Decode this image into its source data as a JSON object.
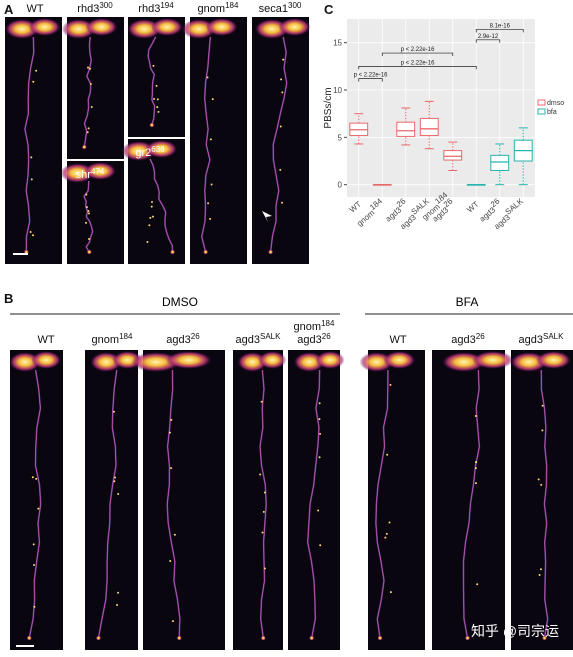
{
  "panel_a": {
    "label": "A",
    "images": [
      [
        [
          "WT"
        ]
      ],
      [
        [
          "rhd3",
          "300"
        ]
      ],
      [
        [
          "rhd3",
          "194"
        ]
      ],
      [
        [
          "gnom",
          "184"
        ]
      ],
      [
        [
          "seca1",
          "300"
        ]
      ],
      [
        [
          "shr",
          "474"
        ]
      ],
      [
        [
          "gr2",
          "633"
        ]
      ]
    ]
  },
  "panel_b": {
    "label": "B",
    "groups": [
      {
        "title": "DMSO",
        "images": [
          [
            [
              "WT"
            ]
          ],
          [
            [
              "gnom",
              "184"
            ]
          ],
          [
            [
              "agd3",
              "26"
            ]
          ],
          [
            [
              "agd3",
              "SALK"
            ]
          ],
          [
            [
              "gnom",
              "184"
            ],
            [
              "agd3",
              "26"
            ]
          ]
        ]
      },
      {
        "title": "BFA",
        "images": [
          [
            [
              "WT"
            ]
          ],
          [
            [
              "agd3",
              "26"
            ]
          ],
          [
            [
              "agd3",
              "SALK"
            ]
          ]
        ]
      }
    ]
  },
  "chart_data": {
    "type": "box",
    "title": "C",
    "y_label": "PBSs/cm",
    "categories": [
      [
        [
          "WT"
        ]
      ],
      [
        [
          "gnom",
          "184"
        ]
      ],
      [
        [
          "agd3",
          "26"
        ]
      ],
      [
        [
          "agd3",
          "SALK"
        ]
      ],
      [
        [
          "gnom",
          "184"
        ],
        [
          "agd3",
          "26"
        ]
      ],
      [
        [
          "WT"
        ]
      ],
      [
        [
          "agd3",
          "26"
        ]
      ],
      [
        [
          "agd3",
          "SALK"
        ]
      ]
    ],
    "ylim": [
      -1.3,
      17.5
    ],
    "yticks": [
      0,
      5,
      10,
      15
    ],
    "grid": true,
    "series": [
      {
        "name": "dmso",
        "color": "#e8696b",
        "values": [
          {
            "min": 4.3,
            "q1": 5.2,
            "median": 5.8,
            "q3": 6.5,
            "max": 7.5
          },
          {
            "min": 0,
            "q1": 0,
            "median": 0,
            "q3": 0,
            "max": 0
          },
          {
            "min": 4.2,
            "q1": 5.1,
            "median": 5.7,
            "q3": 6.6,
            "max": 8.1
          },
          {
            "min": 3.8,
            "q1": 5.2,
            "median": 5.9,
            "q3": 7.0,
            "max": 8.8
          },
          {
            "min": 1.5,
            "q1": 2.6,
            "median": 3.0,
            "q3": 3.6,
            "max": 4.5
          },
          null,
          null,
          null
        ]
      },
      {
        "name": "bfa",
        "color": "#2ab3b0",
        "values": [
          null,
          null,
          null,
          null,
          null,
          {
            "min": 0,
            "q1": 0,
            "median": 0,
            "q3": 0,
            "max": 0
          },
          {
            "min": 0,
            "q1": 1.5,
            "median": 2.4,
            "q3": 3.1,
            "max": 4.3
          },
          {
            "min": 0,
            "q1": 2.5,
            "median": 3.6,
            "q3": 4.7,
            "max": 6.0
          }
        ]
      }
    ],
    "annotations": [
      {
        "text": "p < 2.22e-16",
        "from": 1,
        "to": 4,
        "y": 13.9
      },
      {
        "text": "p < 2.22e-16",
        "from": 0,
        "to": 5,
        "y": 12.5
      },
      {
        "text": "p < 2.22e-16",
        "from": 0,
        "to": 1,
        "y": 11.2
      },
      {
        "text": "2.9e-12",
        "from": 5,
        "to": 6,
        "y": 15.3
      },
      {
        "text": "8.1e-16",
        "from": 5,
        "to": 7,
        "y": 16.4
      }
    ]
  },
  "watermark": "知乎 @司宗运"
}
